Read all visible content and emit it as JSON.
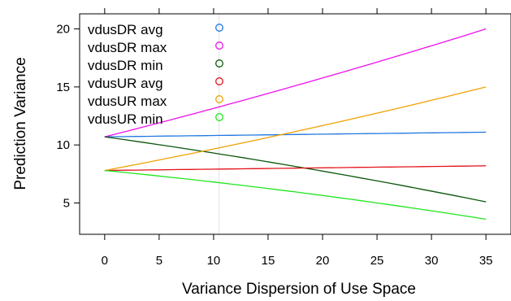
{
  "chart_data": {
    "type": "line",
    "xlabel": "Variance Dispersion of Use Space",
    "ylabel": "Prediction Variance",
    "xlim": [
      -2.3,
      37.3
    ],
    "ylim": [
      2.3,
      21.3
    ],
    "x_ticks": [
      0,
      5,
      10,
      15,
      20,
      25,
      30,
      35
    ],
    "y_ticks": [
      5,
      10,
      15,
      20
    ],
    "grid": "vertical line at x = 10.5",
    "legend_position": "top-left",
    "x": [
      0,
      35
    ],
    "series": [
      {
        "name": "vdusDR avg",
        "color": "#1f77e0",
        "start": 10.7,
        "end": 11.1,
        "curve": 0
      },
      {
        "name": "vdusDR max",
        "color": "#ee11ee",
        "start": 10.7,
        "end": 20.0,
        "curve": 0.25
      },
      {
        "name": "vdusDR min",
        "color": "#0a560a",
        "start": 10.7,
        "end": 5.1,
        "curve": -0.25
      },
      {
        "name": "vdusUR avg",
        "color": "#e4131a",
        "start": 7.8,
        "end": 8.2,
        "curve": 0
      },
      {
        "name": "vdusUR max",
        "color": "#f0a100",
        "start": 7.8,
        "end": 15.0,
        "curve": 0.25
      },
      {
        "name": "vdusUR min",
        "color": "#1ee61e",
        "start": 7.8,
        "end": 3.6,
        "curve": -0.25
      }
    ]
  }
}
